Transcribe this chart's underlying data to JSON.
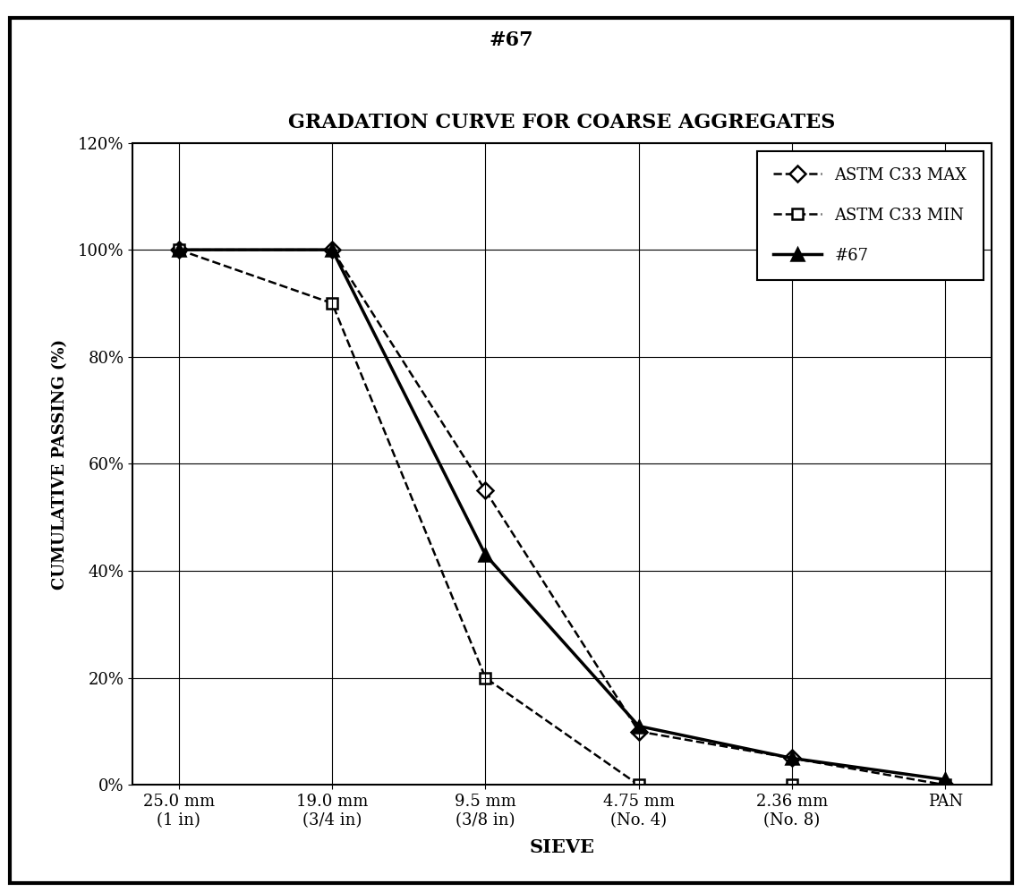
{
  "super_title": "#67",
  "chart_title": "GRADATION CURVE FOR COARSE AGGREGATES",
  "xlabel": "SIEVE",
  "ylabel": "CUMULATIVE PASSING (%)",
  "x_labels": [
    "25.0 mm\n(1 in)",
    "19.0 mm\n(3/4 in)",
    "9.5 mm\n(3/8 in)",
    "4.75 mm\n(No. 4)",
    "2.36 mm\n(No. 8)",
    "PAN"
  ],
  "x_positions": [
    0,
    1,
    2,
    3,
    4,
    5
  ],
  "astm_max": [
    100,
    100,
    55,
    10,
    5,
    0
  ],
  "astm_min": [
    100,
    90,
    20,
    0,
    0,
    0
  ],
  "series_67": [
    100,
    100,
    43,
    11,
    5,
    1
  ],
  "ylim": [
    0,
    120
  ],
  "yticks": [
    0,
    20,
    40,
    60,
    80,
    100,
    120
  ],
  "ytick_labels": [
    "0%",
    "20%",
    "40%",
    "60%",
    "80%",
    "100%",
    "120%"
  ],
  "legend_labels": [
    "ASTM C33 MAX",
    "ASTM C33 MIN",
    "#67"
  ],
  "bg_color": "#ffffff",
  "line_color": "#000000",
  "grid_color": "#000000",
  "border_color": "#000000"
}
